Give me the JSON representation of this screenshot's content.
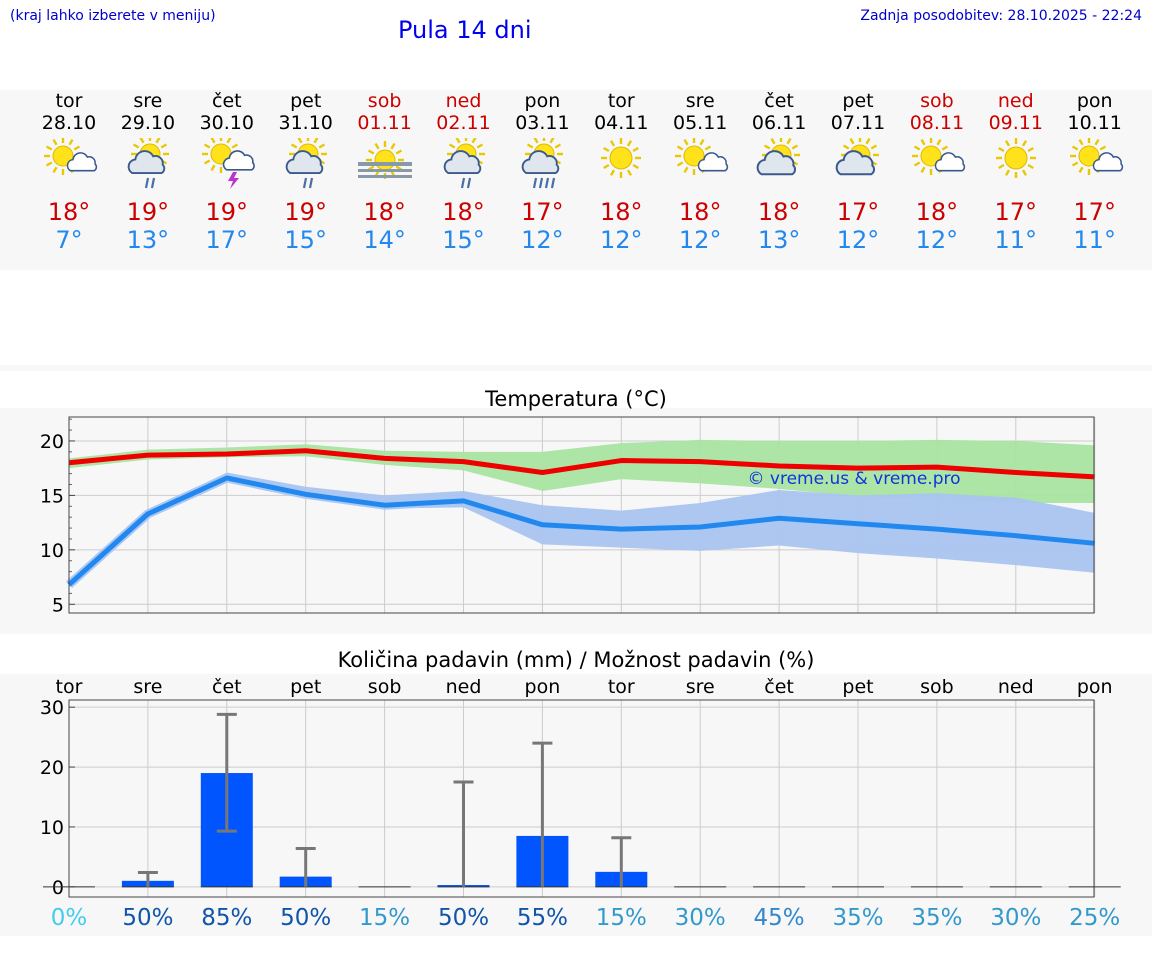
{
  "header": {
    "hint": "(kraj lahko izberete v meniju)",
    "title": "Pula 14 dni",
    "updated": "Zadnja posodobitev: 28.10.2025 - 22:24"
  },
  "days": [
    {
      "name": "tor",
      "date": "28.10",
      "weekend": false,
      "icon": "sun-cloud-icon",
      "tmax": "18°",
      "tmin": "7°"
    },
    {
      "name": "sre",
      "date": "29.10",
      "weekend": false,
      "icon": "sun-cloud-rain-icon",
      "tmax": "19°",
      "tmin": "13°"
    },
    {
      "name": "čet",
      "date": "30.10",
      "weekend": false,
      "icon": "sun-thunder-icon",
      "tmax": "19°",
      "tmin": "17°"
    },
    {
      "name": "pet",
      "date": "31.10",
      "weekend": false,
      "icon": "sun-cloud-rain-icon",
      "tmax": "19°",
      "tmin": "15°"
    },
    {
      "name": "sob",
      "date": "01.11",
      "weekend": true,
      "icon": "sun-fog-icon",
      "tmax": "18°",
      "tmin": "14°"
    },
    {
      "name": "ned",
      "date": "02.11",
      "weekend": true,
      "icon": "sun-cloud-rain-icon",
      "tmax": "18°",
      "tmin": "15°"
    },
    {
      "name": "pon",
      "date": "03.11",
      "weekend": false,
      "icon": "sun-cloud-heavy-rain-icon",
      "tmax": "17°",
      "tmin": "12°"
    },
    {
      "name": "tor",
      "date": "04.11",
      "weekend": false,
      "icon": "sun-icon",
      "tmax": "18°",
      "tmin": "12°"
    },
    {
      "name": "sre",
      "date": "05.11",
      "weekend": false,
      "icon": "sun-cloud-icon",
      "tmax": "18°",
      "tmin": "12°"
    },
    {
      "name": "čet",
      "date": "06.11",
      "weekend": false,
      "icon": "sun-big-cloud-icon",
      "tmax": "18°",
      "tmin": "13°"
    },
    {
      "name": "pet",
      "date": "07.11",
      "weekend": false,
      "icon": "sun-big-cloud-icon",
      "tmax": "17°",
      "tmin": "12°"
    },
    {
      "name": "sob",
      "date": "08.11",
      "weekend": true,
      "icon": "sun-cloud-icon",
      "tmax": "18°",
      "tmin": "12°"
    },
    {
      "name": "ned",
      "date": "09.11",
      "weekend": true,
      "icon": "sun-icon",
      "tmax": "17°",
      "tmin": "11°"
    },
    {
      "name": "pon",
      "date": "10.11",
      "weekend": false,
      "icon": "sun-cloud-icon",
      "tmax": "17°",
      "tmin": "11°"
    }
  ],
  "colors": {
    "max": "#ee0000",
    "min": "#2288ee",
    "max_band": "#a8e4a0",
    "min_band": "#aac4f0",
    "bar": "#0055ff",
    "err": "#777777"
  },
  "chart_data": [
    {
      "type": "line",
      "title": "Temperatura (°C)",
      "watermark": "© vreme.us & vreme.pro",
      "categories": [
        "tor",
        "sre",
        "čet",
        "pet",
        "sob",
        "ned",
        "pon",
        "tor",
        "sre",
        "čet",
        "pet",
        "sob",
        "ned",
        "pon"
      ],
      "ylim": [
        4.2,
        22.2
      ],
      "yticks": [
        5,
        10,
        15,
        20
      ],
      "series": [
        {
          "name": "max",
          "values": [
            18.0,
            18.7,
            18.8,
            19.1,
            18.4,
            18.1,
            17.1,
            18.2,
            18.1,
            17.7,
            17.5,
            17.6,
            17.1,
            16.7
          ],
          "band_low": [
            17.5,
            18.3,
            18.5,
            18.6,
            17.8,
            17.3,
            15.4,
            16.5,
            16.1,
            15.6,
            14.9,
            14.6,
            14.3,
            14.3
          ],
          "band_high": [
            18.4,
            19.2,
            19.4,
            19.7,
            19.1,
            19.0,
            19.0,
            19.8,
            20.1,
            20.0,
            20.0,
            20.1,
            20.0,
            19.6
          ]
        },
        {
          "name": "min",
          "values": [
            6.8,
            13.3,
            16.6,
            15.1,
            14.1,
            14.5,
            12.3,
            11.9,
            12.1,
            12.9,
            12.4,
            11.9,
            11.3,
            10.6
          ],
          "band_low": [
            6.6,
            13.0,
            16.2,
            14.7,
            13.8,
            13.9,
            10.5,
            10.2,
            9.9,
            10.4,
            9.7,
            9.2,
            8.6,
            7.9
          ],
          "band_high": [
            7.2,
            13.6,
            17.1,
            15.8,
            15.0,
            15.4,
            14.1,
            13.6,
            14.3,
            15.5,
            15.0,
            15.2,
            14.8,
            13.4
          ]
        }
      ]
    },
    {
      "type": "bar",
      "title": "Količina padavin (mm) / Možnost padavin (%)",
      "categories": [
        "tor",
        "sre",
        "čet",
        "pet",
        "sob",
        "ned",
        "pon",
        "tor",
        "sre",
        "čet",
        "pet",
        "sob",
        "ned",
        "pon"
      ],
      "ylim": [
        -1.7,
        31.2
      ],
      "yticks": [
        0,
        10,
        20,
        30
      ],
      "values": [
        0.0,
        1.0,
        19.0,
        1.7,
        0.0,
        0.3,
        8.5,
        2.5,
        0.0,
        0.0,
        0.0,
        0.0,
        0.0,
        0.0
      ],
      "err_high": [
        0.0,
        2.4,
        28.8,
        6.4,
        0.0,
        17.5,
        24.0,
        8.2,
        0.0,
        0.0,
        0.0,
        0.0,
        0.0,
        0.0
      ],
      "err_low": [
        0.0,
        0.0,
        9.3,
        0.0,
        0.0,
        0.0,
        0.0,
        0.0,
        0.0,
        0.0,
        0.0,
        0.0,
        0.0,
        0.0
      ],
      "probability": [
        "0%",
        "50%",
        "85%",
        "50%",
        "15%",
        "50%",
        "55%",
        "15%",
        "30%",
        "45%",
        "35%",
        "35%",
        "30%",
        "25%"
      ],
      "probability_colors": [
        "#44ccee",
        "#1155aa",
        "#1155aa",
        "#1155aa",
        "#3399cc",
        "#1155aa",
        "#1155aa",
        "#3399cc",
        "#3399cc",
        "#3388cc",
        "#3399cc",
        "#3399cc",
        "#3399cc",
        "#3399cc"
      ]
    }
  ]
}
